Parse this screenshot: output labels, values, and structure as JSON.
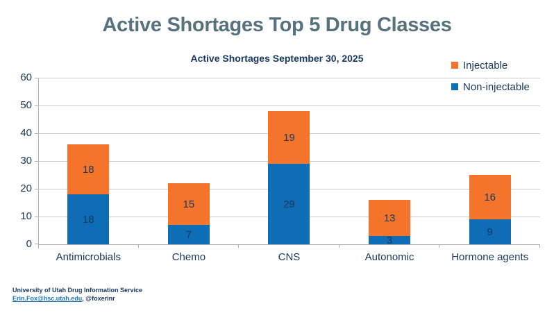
{
  "page": {
    "title": "Active Shortages Top 5 Drug Classes"
  },
  "chart_data": {
    "type": "bar",
    "stacked": true,
    "title": "Active Shortages September 30, 2025",
    "categories": [
      "Antimicrobials",
      "Chemo",
      "CNS",
      "Autonomic",
      "Hormone agents"
    ],
    "series": [
      {
        "name": "Non-injectable",
        "color": "#0e6db4",
        "values": [
          18,
          7,
          29,
          3,
          9
        ]
      },
      {
        "name": "Injectable",
        "color": "#f4742c",
        "values": [
          18,
          15,
          19,
          13,
          16
        ]
      }
    ],
    "totals": [
      36,
      22,
      48,
      16,
      25
    ],
    "ylim": [
      0,
      60
    ],
    "yticks": [
      0,
      10,
      20,
      30,
      40,
      50,
      60
    ],
    "grid": true,
    "legend": [
      {
        "label": "Injectable",
        "color": "#f4742c"
      },
      {
        "label": "Non-injectable",
        "color": "#0e6db4"
      }
    ],
    "legend_position": "top-right",
    "bar_label_color": "#17375e"
  },
  "footer": {
    "line1": "University of Utah Drug Information Service",
    "email_link": "Erin.Fox@hsc.utah.edu",
    "handle": ", @foxerinr"
  },
  "colors": {
    "title": "#56727f",
    "navy": "#17375e",
    "link": "#1878be",
    "orange": "#f4742c",
    "blue": "#0e6db4",
    "gridline": "#c9cccf",
    "axis": "#a9aeb3"
  }
}
